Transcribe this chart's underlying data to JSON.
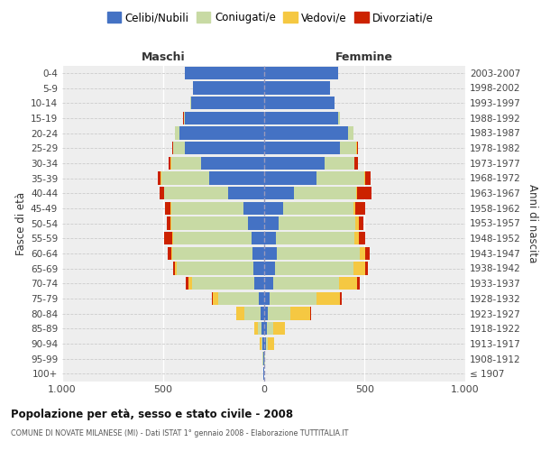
{
  "age_groups": [
    "100+",
    "95-99",
    "90-94",
    "85-89",
    "80-84",
    "75-79",
    "70-74",
    "65-69",
    "60-64",
    "55-59",
    "50-54",
    "45-49",
    "40-44",
    "35-39",
    "30-34",
    "25-29",
    "20-24",
    "15-19",
    "10-14",
    "5-9",
    "0-4"
  ],
  "birth_years": [
    "≤ 1907",
    "1908-1912",
    "1913-1917",
    "1918-1922",
    "1923-1927",
    "1928-1932",
    "1933-1937",
    "1938-1942",
    "1943-1947",
    "1948-1952",
    "1953-1957",
    "1958-1962",
    "1963-1967",
    "1968-1972",
    "1973-1977",
    "1978-1982",
    "1983-1987",
    "1988-1992",
    "1993-1997",
    "1998-2002",
    "2003-2007"
  ],
  "male_celibe": [
    2,
    3,
    5,
    10,
    15,
    25,
    45,
    50,
    55,
    60,
    80,
    100,
    175,
    270,
    310,
    390,
    420,
    390,
    360,
    350,
    390
  ],
  "male_coniugato": [
    1,
    2,
    8,
    20,
    80,
    200,
    310,
    380,
    400,
    390,
    380,
    360,
    320,
    240,
    150,
    60,
    20,
    8,
    3,
    2,
    1
  ],
  "male_vedovo": [
    0,
    1,
    5,
    15,
    40,
    30,
    20,
    10,
    5,
    3,
    2,
    2,
    1,
    1,
    1,
    1,
    0,
    0,
    0,
    0,
    0
  ],
  "male_divorziato": [
    0,
    0,
    1,
    2,
    3,
    3,
    10,
    10,
    15,
    40,
    20,
    30,
    20,
    15,
    10,
    5,
    2,
    1,
    0,
    0,
    0
  ],
  "female_celibe": [
    2,
    3,
    10,
    15,
    20,
    30,
    45,
    55,
    65,
    60,
    75,
    95,
    150,
    260,
    300,
    380,
    420,
    370,
    350,
    330,
    370
  ],
  "female_coniugata": [
    1,
    2,
    10,
    30,
    110,
    230,
    330,
    390,
    410,
    390,
    380,
    350,
    310,
    240,
    150,
    80,
    25,
    8,
    2,
    1,
    1
  ],
  "female_vedova": [
    0,
    3,
    30,
    60,
    100,
    120,
    90,
    60,
    30,
    20,
    15,
    10,
    5,
    2,
    1,
    1,
    0,
    0,
    0,
    0,
    0
  ],
  "female_divorziata": [
    0,
    0,
    1,
    2,
    3,
    5,
    10,
    10,
    20,
    35,
    25,
    50,
    70,
    30,
    15,
    5,
    2,
    1,
    0,
    0,
    0
  ],
  "color_celibe": "#4472c4",
  "color_coniugato": "#c8daa4",
  "color_vedovo": "#f5c842",
  "color_divorziato": "#cc2200",
  "bg_color": "#eeeeee",
  "title": "Popolazione per età, sesso e stato civile - 2008",
  "subtitle": "COMUNE DI NOVATE MILANESE (MI) - Dati ISTAT 1° gennaio 2008 - Elaborazione TUTTITALIA.IT",
  "label_maschi": "Maschi",
  "label_femmine": "Femmine",
  "ylabel_left": "Fasce di età",
  "ylabel_right": "Anni di nascita",
  "legend_labels": [
    "Celibi/Nubili",
    "Coniugati/e",
    "Vedovi/e",
    "Divorziati/e"
  ]
}
